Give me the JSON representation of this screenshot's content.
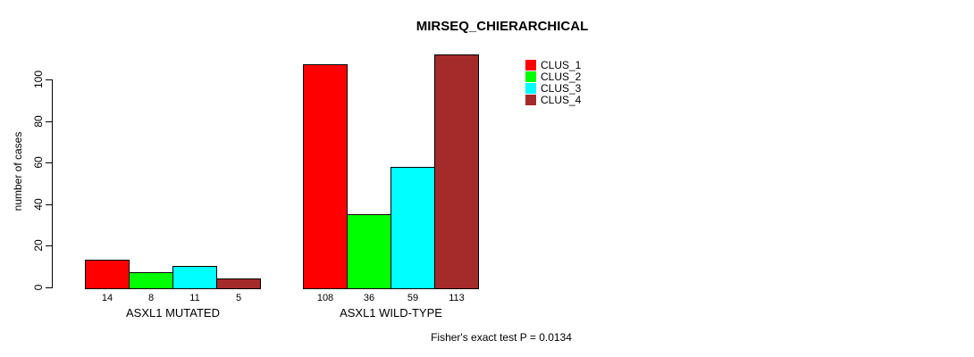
{
  "chart_data": {
    "type": "bar",
    "title": "MIRSEQ_CHIERARCHICAL",
    "ylabel": "number of cases",
    "xlabel": "",
    "categories": [
      "ASXL1 MUTATED",
      "ASXL1 WILD-TYPE"
    ],
    "series": [
      {
        "name": "CLUS_1",
        "color": "#FF0000",
        "values": [
          14,
          108
        ]
      },
      {
        "name": "CLUS_2",
        "color": "#00FF00",
        "values": [
          8,
          36
        ]
      },
      {
        "name": "CLUS_3",
        "color": "#00FFFF",
        "values": [
          11,
          59
        ]
      },
      {
        "name": "CLUS_4",
        "color": "#A52A2A",
        "values": [
          5,
          113
        ]
      }
    ],
    "y_ticks": [
      0,
      20,
      40,
      60,
      80,
      100
    ],
    "ylim": [
      0,
      116
    ],
    "grid": false,
    "legend_position": "inside-top-right",
    "annotation": "Fisher's exact test P = 0.0134"
  }
}
